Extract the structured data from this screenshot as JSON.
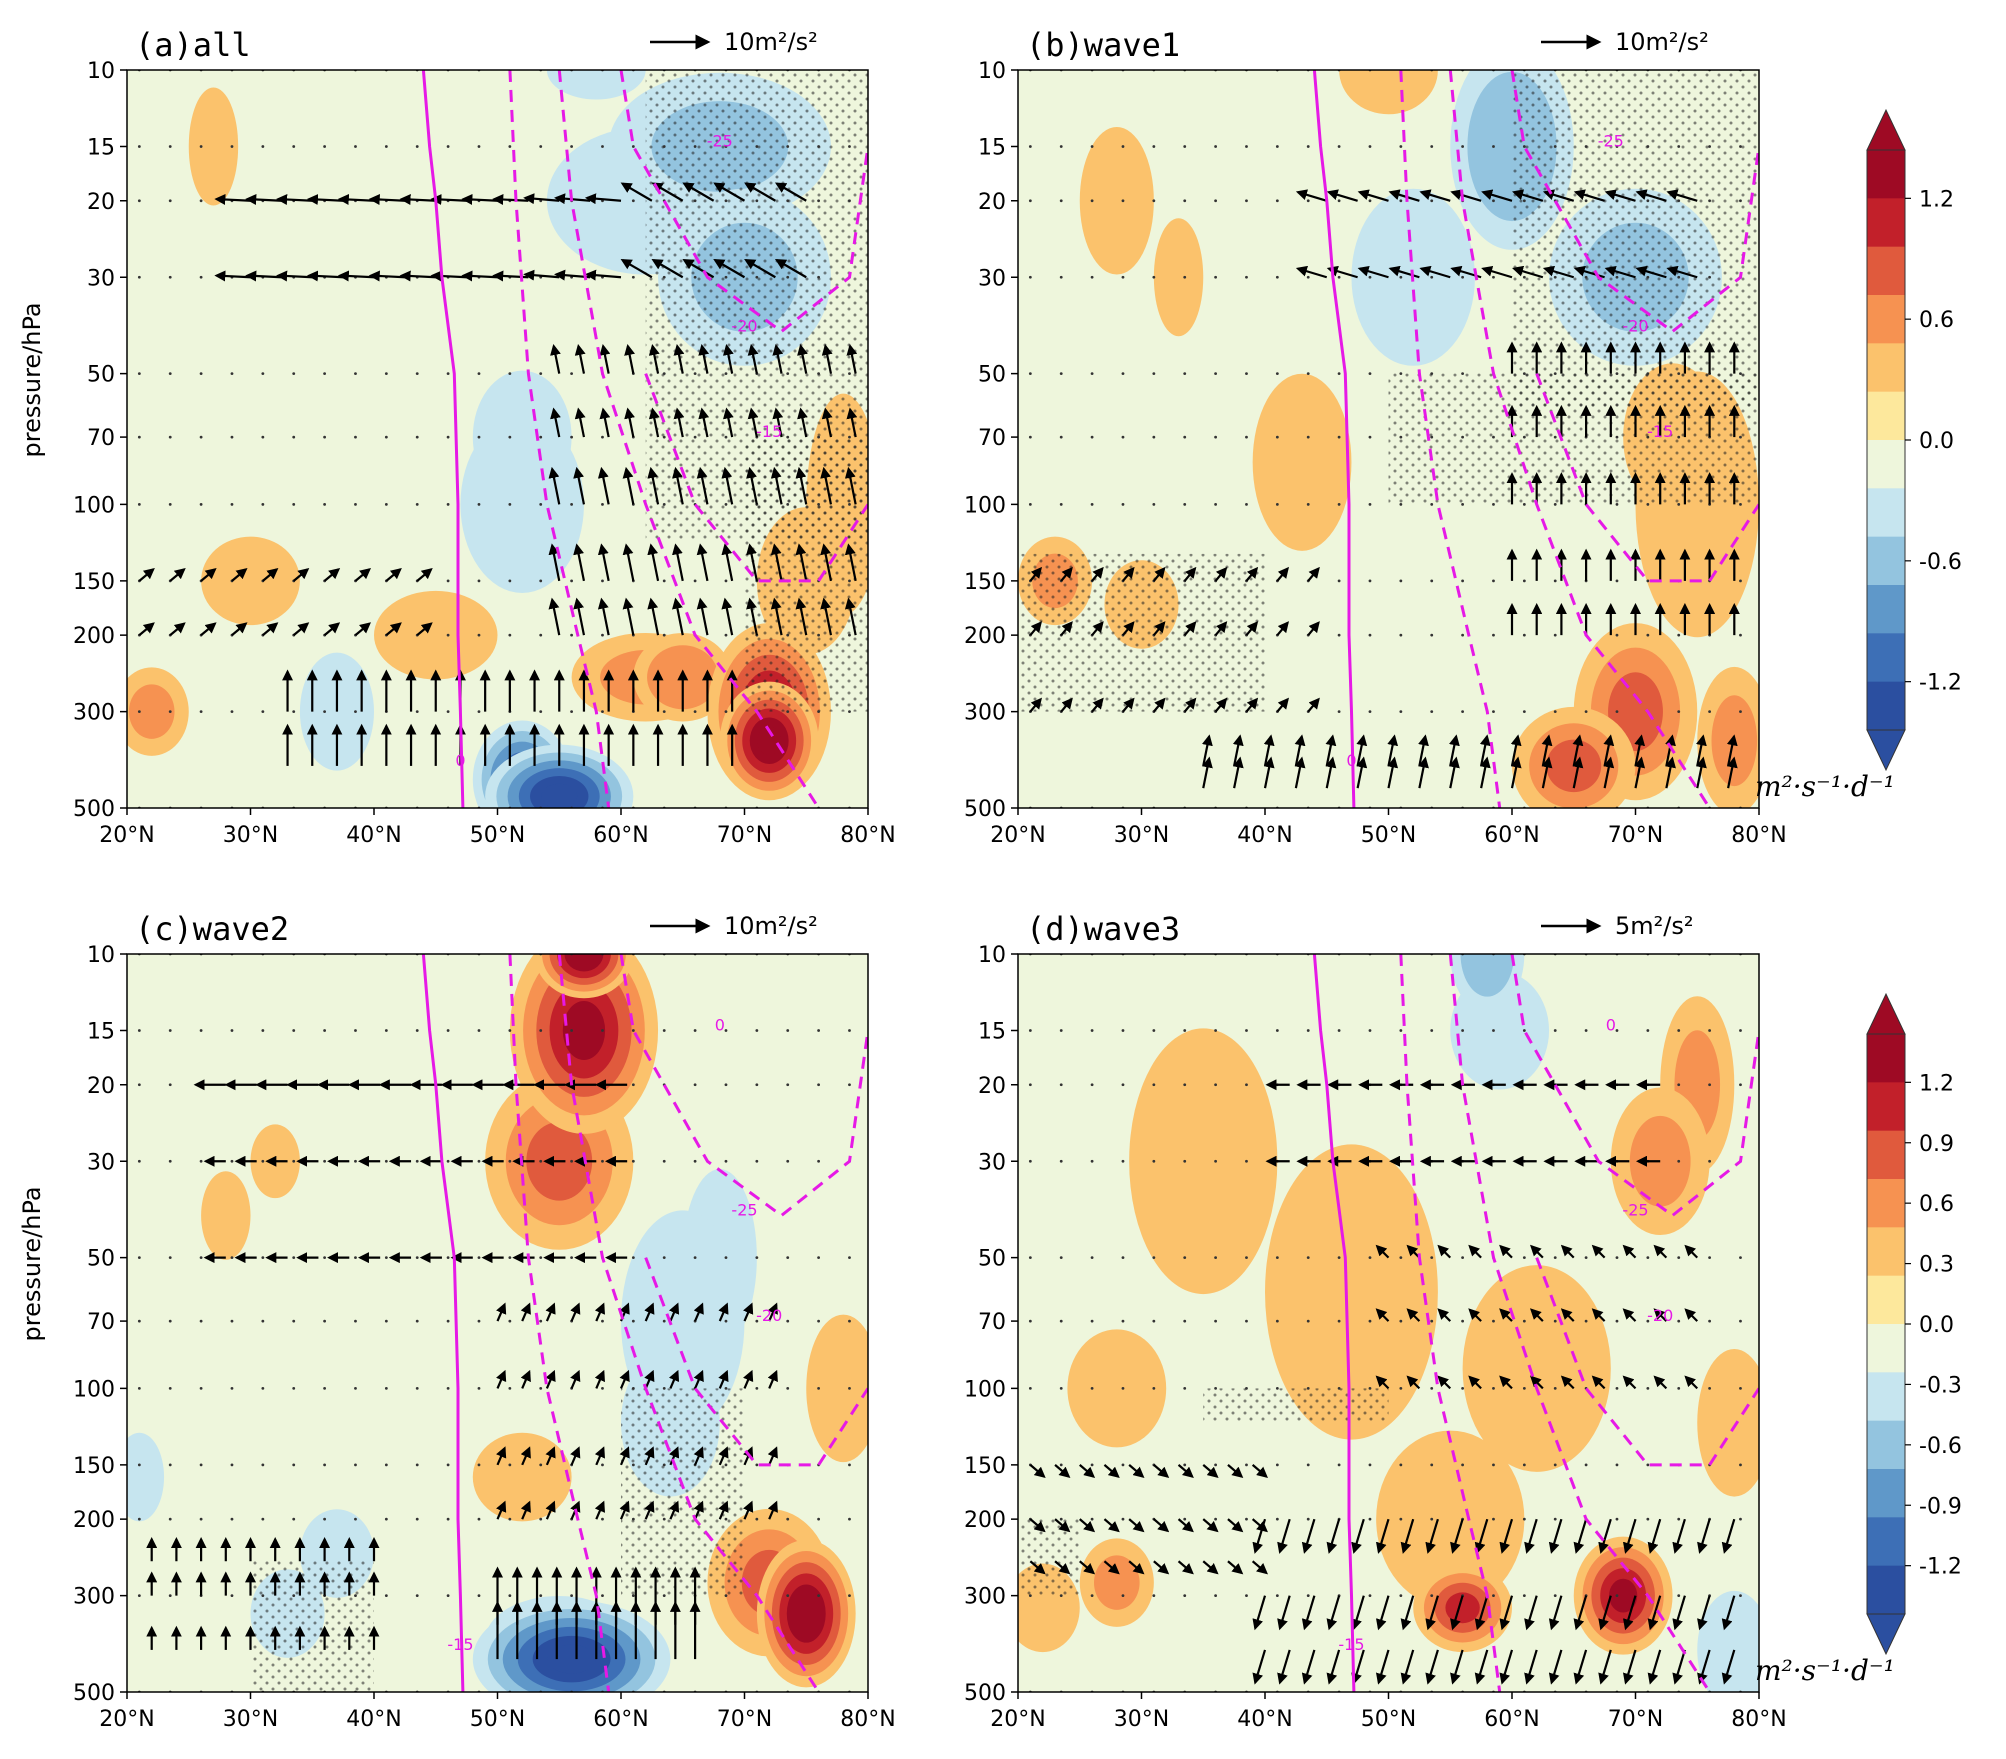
{
  "figure": {
    "ylabel": "pressure/hPa",
    "unit": "m²·s⁻¹·d⁻¹"
  },
  "chart_data": [
    {
      "type": "heatmap",
      "panel": "a",
      "title": "(a)all",
      "reference_vector": "10m²/s²",
      "xlabel": "",
      "ylabel": "pressure/hPa",
      "x_ticks": [
        "20°N",
        "30°N",
        "40°N",
        "50°N",
        "60°N",
        "70°N",
        "80°N"
      ],
      "y_ticks": [
        "10",
        "15",
        "20",
        "30",
        "50",
        "70",
        "100",
        "150",
        "200",
        "300",
        "500"
      ],
      "xlim": [
        20,
        80
      ],
      "ylim": [
        500,
        10
      ],
      "contour_labels": [
        "0",
        "-15",
        "-20",
        "-25"
      ],
      "colorbar": "top"
    },
    {
      "type": "heatmap",
      "panel": "b",
      "title": "(b)wave1",
      "reference_vector": "10m²/s²",
      "xlabel": "",
      "ylabel": "",
      "x_ticks": [
        "20°N",
        "30°N",
        "40°N",
        "50°N",
        "60°N",
        "70°N",
        "80°N"
      ],
      "y_ticks": [
        "10",
        "15",
        "20",
        "30",
        "50",
        "70",
        "100",
        "150",
        "200",
        "300",
        "500"
      ],
      "xlim": [
        20,
        80
      ],
      "ylim": [
        500,
        10
      ],
      "contour_labels": [
        "0",
        "-15",
        "-20",
        "-25"
      ],
      "colorbar": "top"
    },
    {
      "type": "heatmap",
      "panel": "c",
      "title": "(c)wave2",
      "reference_vector": "10m²/s²",
      "xlabel": "",
      "ylabel": "pressure/hPa",
      "x_ticks": [
        "20°N",
        "30°N",
        "40°N",
        "50°N",
        "60°N",
        "70°N",
        "80°N"
      ],
      "y_ticks": [
        "10",
        "15",
        "20",
        "30",
        "50",
        "70",
        "100",
        "150",
        "200",
        "300",
        "500"
      ],
      "xlim": [
        20,
        80
      ],
      "ylim": [
        500,
        10
      ],
      "contour_labels": [
        "-15",
        "-20",
        "-25",
        "0"
      ],
      "colorbar": "bottom"
    },
    {
      "type": "heatmap",
      "panel": "d",
      "title": "(d)wave3",
      "reference_vector": "5m²/s²",
      "xlabel": "",
      "ylabel": "",
      "x_ticks": [
        "20°N",
        "30°N",
        "40°N",
        "50°N",
        "60°N",
        "70°N",
        "80°N"
      ],
      "y_ticks": [
        "10",
        "15",
        "20",
        "30",
        "50",
        "70",
        "100",
        "150",
        "200",
        "300",
        "500"
      ],
      "xlim": [
        20,
        80
      ],
      "ylim": [
        500,
        10
      ],
      "contour_labels": [
        "-15",
        "-20",
        "-25",
        "0"
      ],
      "colorbar": "bottom"
    }
  ],
  "colorbars": [
    {
      "name": "top",
      "ticks": [
        "1.2",
        "0.6",
        "0.0",
        "-0.6",
        "-1.2"
      ],
      "unit": "m²·s⁻¹·d⁻¹",
      "colors": [
        "#2b4fa0",
        "#3d6fb6",
        "#5f98c9",
        "#93c4df",
        "#c6e5ef",
        "#eef6dc",
        "#fde89c",
        "#fbc26c",
        "#f69251",
        "#e05a3d",
        "#c2202a",
        "#9e0a24"
      ]
    },
    {
      "name": "bottom",
      "ticks": [
        "1.2",
        "0.9",
        "0.6",
        "0.3",
        "0.0",
        "-0.3",
        "-0.6",
        "-0.9",
        "-1.2"
      ],
      "unit": "m²·s⁻¹·d⁻¹",
      "colors": [
        "#2b4fa0",
        "#3d6fb6",
        "#5f98c9",
        "#93c4df",
        "#c6e5ef",
        "#eef6dc",
        "#fde89c",
        "#fbc26c",
        "#f69251",
        "#e05a3d",
        "#c2202a",
        "#9e0a24"
      ]
    }
  ],
  "palette": {
    "contour": "#e619e6",
    "background_fill": "#eef6dc"
  }
}
